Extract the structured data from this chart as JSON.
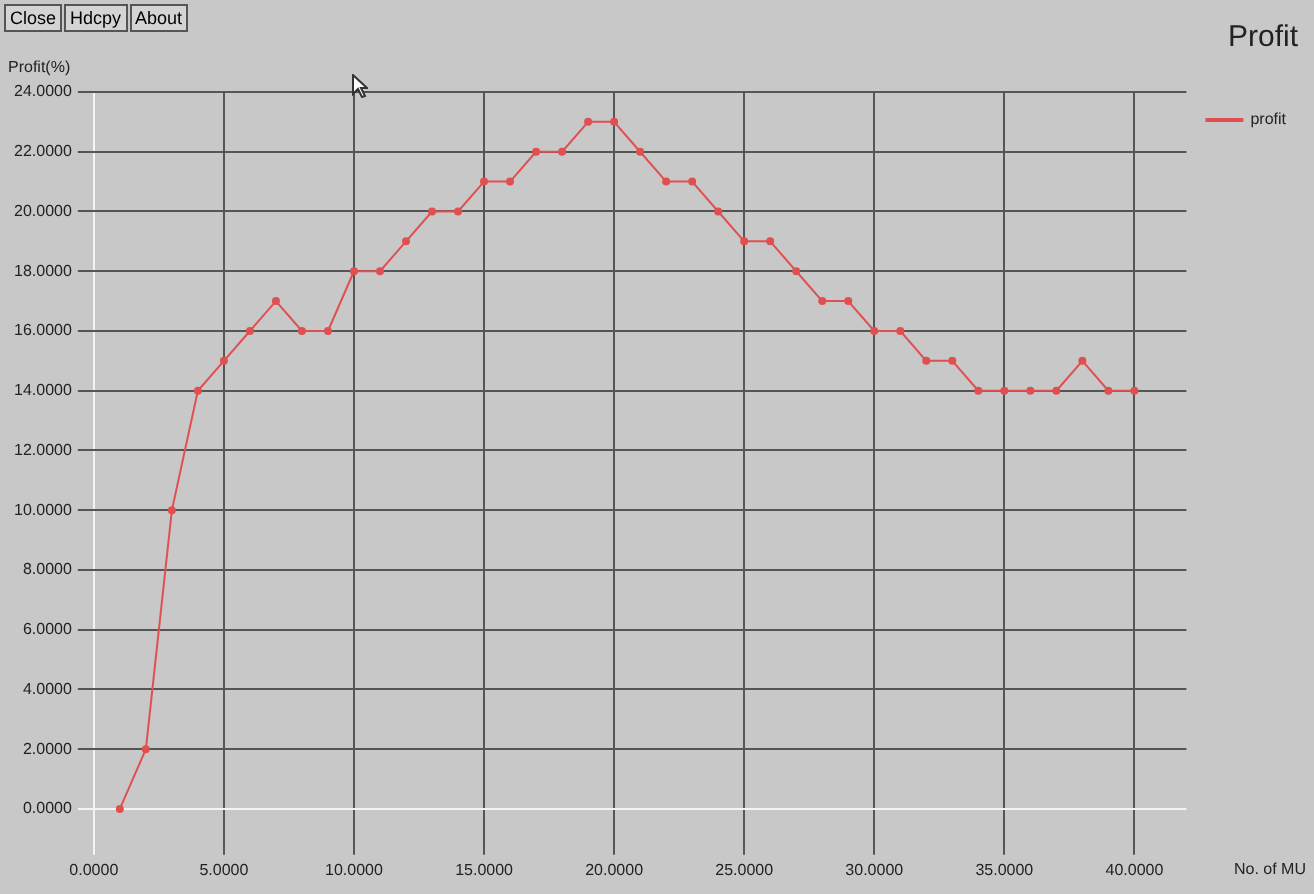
{
  "chart_data": {
    "type": "line",
    "title": "Profit",
    "xlabel": "No. of MU",
    "ylabel": "Profit(%)",
    "annotations": [
      "Close",
      "Hdcpy",
      "About"
    ],
    "x": [
      1,
      2,
      3,
      4,
      5,
      6,
      7,
      8,
      9,
      10,
      11,
      12,
      13,
      14,
      15,
      16,
      17,
      18,
      19,
      20,
      21,
      22,
      23,
      24,
      25,
      26,
      27,
      28,
      29,
      30,
      31,
      32,
      33,
      34,
      35,
      36,
      37,
      38,
      39,
      40
    ],
    "series": [
      {
        "name": "profit",
        "color": "#e05050",
        "values": [
          0,
          2,
          10,
          14,
          15,
          16,
          17,
          16,
          16,
          18,
          18,
          19,
          20,
          20,
          21,
          21,
          22,
          22,
          23,
          23,
          22,
          21,
          21,
          20,
          19,
          19,
          18,
          17,
          17,
          16,
          16,
          15,
          15,
          14,
          14,
          14,
          14,
          15,
          14,
          14
        ]
      }
    ],
    "xlim": [
      0,
      42
    ],
    "ylim": [
      -1,
      24
    ],
    "xticks": [
      {
        "value": 0,
        "label": "0.0000"
      },
      {
        "value": 5,
        "label": "5.0000"
      },
      {
        "value": 10,
        "label": "10.0000"
      },
      {
        "value": 15,
        "label": "15.0000"
      },
      {
        "value": 20,
        "label": "20.0000"
      },
      {
        "value": 25,
        "label": "25.0000"
      },
      {
        "value": 30,
        "label": "30.0000"
      },
      {
        "value": 35,
        "label": "35.0000"
      },
      {
        "value": 40,
        "label": "40.0000"
      }
    ],
    "yticks": [
      {
        "value": 0,
        "label": "0.0000"
      },
      {
        "value": 2,
        "label": "2.0000"
      },
      {
        "value": 4,
        "label": "4.0000"
      },
      {
        "value": 6,
        "label": "6.0000"
      },
      {
        "value": 8,
        "label": "8.0000"
      },
      {
        "value": 10,
        "label": "10.0000"
      },
      {
        "value": 12,
        "label": "12.0000"
      },
      {
        "value": 14,
        "label": "14.0000"
      },
      {
        "value": 16,
        "label": "16.0000"
      },
      {
        "value": 18,
        "label": "18.0000"
      },
      {
        "value": 20,
        "label": "20.0000"
      },
      {
        "value": 22,
        "label": "22.0000"
      },
      {
        "value": 24,
        "label": "24.0000"
      }
    ],
    "grid": true,
    "legend": "top right",
    "marker": "circle",
    "line_style": "solid"
  }
}
